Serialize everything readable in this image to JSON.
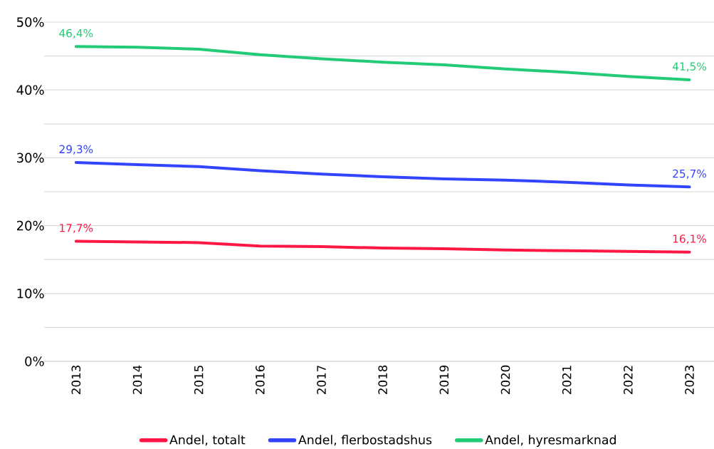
{
  "chart_data": {
    "type": "line",
    "categories": [
      "2013",
      "2014",
      "2015",
      "2016",
      "2017",
      "2018",
      "2019",
      "2020",
      "2021",
      "2022",
      "2023"
    ],
    "series": [
      {
        "name": "Andel, totalt",
        "color": "#ff1744",
        "values": [
          17.7,
          17.6,
          17.5,
          17.0,
          16.9,
          16.7,
          16.6,
          16.4,
          16.3,
          16.2,
          16.1
        ],
        "value_labels": [
          "17,7%",
          null,
          null,
          null,
          null,
          null,
          null,
          null,
          null,
          null,
          "16,1%"
        ]
      },
      {
        "name": "Andel, flerbostadshus",
        "color": "#3344ff",
        "values": [
          29.3,
          29.0,
          28.7,
          28.1,
          27.6,
          27.2,
          26.9,
          26.7,
          26.4,
          26.0,
          25.7
        ],
        "value_labels": [
          "29,3%",
          null,
          null,
          null,
          null,
          null,
          null,
          null,
          null,
          null,
          "25,7%"
        ]
      },
      {
        "name": "Andel, hyresmarknad",
        "color": "#22cc77",
        "values": [
          46.4,
          46.3,
          46.0,
          45.2,
          44.6,
          44.1,
          43.7,
          43.1,
          42.6,
          42.0,
          41.5
        ],
        "value_labels": [
          "46,4%",
          null,
          null,
          null,
          null,
          null,
          null,
          null,
          null,
          null,
          "41,5%"
        ]
      }
    ],
    "ylim": [
      0,
      50
    ],
    "yticks": [
      {
        "value": 0,
        "label": "0%"
      },
      {
        "value": 5,
        "label": null
      },
      {
        "value": 10,
        "label": "10%"
      },
      {
        "value": 15,
        "label": null
      },
      {
        "value": 20,
        "label": "20%"
      },
      {
        "value": 25,
        "label": null
      },
      {
        "value": 30,
        "label": "30%"
      },
      {
        "value": 35,
        "label": null
      },
      {
        "value": 40,
        "label": "40%"
      },
      {
        "value": 45,
        "label": null
      },
      {
        "value": 50,
        "label": "50%"
      }
    ],
    "grid": "y",
    "legend": "bottom",
    "marker": "none",
    "line_style": "solid"
  }
}
